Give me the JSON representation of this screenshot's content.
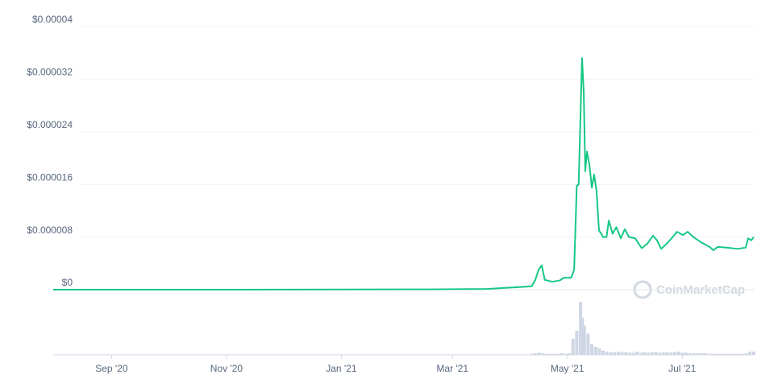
{
  "chart_data": {
    "type": "line",
    "watermark": "CoinMarketCap",
    "x": [
      0,
      100,
      200,
      230,
      254,
      256,
      257.7,
      259.4,
      261,
      265,
      269,
      271,
      275,
      276.6,
      278,
      279,
      280.8,
      281.7,
      282.5,
      283.4,
      284.7,
      286,
      287.2,
      288.5,
      289.8,
      291,
      292,
      293.8,
      295,
      297,
      299,
      301.4,
      303.5,
      305.7,
      309,
      312.5,
      315.5,
      318.5,
      320.6,
      322.8,
      325.8,
      328.3,
      331.3,
      334.3,
      336.9,
      339.9,
      344,
      348.5,
      350.6,
      352.8,
      357,
      363.5,
      367.7,
      369,
      370.7,
      372
    ],
    "xlim": [
      0,
      372
    ],
    "xticks": [
      {
        "value": 31,
        "label": "Sep '20"
      },
      {
        "value": 92,
        "label": "Nov '20"
      },
      {
        "value": 153,
        "label": "Jan '21"
      },
      {
        "value": 212,
        "label": "Mar '21"
      },
      {
        "value": 273,
        "label": "May '21"
      },
      {
        "value": 334,
        "label": "Jul '21"
      }
    ],
    "ylim": [
      0,
      4e-05
    ],
    "yticks": [
      {
        "value": 0,
        "label": "$0"
      },
      {
        "value": 8e-06,
        "label": "$0.000008"
      },
      {
        "value": 1.6e-05,
        "label": "$0.000016"
      },
      {
        "value": 2.4e-05,
        "label": "$0.000024"
      },
      {
        "value": 3.2e-05,
        "label": "$0.000032"
      },
      {
        "value": 4e-05,
        "label": "$0.00004"
      }
    ],
    "y2lim": [
      0,
      100
    ],
    "grid": true,
    "series": [
      {
        "color": "#16c784",
        "values": [
          0,
          0,
          5e-08,
          1e-07,
          5e-07,
          1.5e-06,
          3e-06,
          3.7e-06,
          1.5e-06,
          1.2e-06,
          1.4e-06,
          1.8e-06,
          1.8e-06,
          3e-06,
          1.58e-05,
          1.6e-05,
          3.52e-05,
          3e-05,
          1.8e-05,
          2.1e-05,
          1.9e-05,
          1.55e-05,
          1.75e-05,
          1.5e-05,
          9e-06,
          8.5e-06,
          8e-06,
          8e-06,
          1.05e-05,
          8.5e-06,
          9.5e-06,
          7.8e-06,
          9.2e-06,
          8e-06,
          7.8e-06,
          6.3e-06,
          7e-06,
          8.2e-06,
          7.5e-06,
          6.2e-06,
          7e-06,
          7.8e-06,
          8.8e-06,
          8.3e-06,
          8.8e-06,
          8e-06,
          7.2e-06,
          6.5e-06,
          6e-06,
          6.5e-06,
          6.4e-06,
          6.2e-06,
          6.4e-06,
          7.8e-06,
          7.5e-06,
          8e-06
        ]
      },
      {
        "type": "bar",
        "axis": "y2",
        "color": "#cfd6e4",
        "x": [
          254,
          256,
          258,
          260,
          262,
          264,
          266,
          268,
          270,
          272,
          274,
          276,
          278,
          280,
          281,
          282,
          284,
          286,
          288,
          290,
          292,
          294,
          296,
          298,
          300,
          302,
          304,
          306,
          308,
          310,
          312,
          314,
          316,
          318,
          320,
          322,
          324,
          326,
          328,
          330,
          332,
          334,
          336,
          338,
          340,
          342,
          344,
          346,
          348,
          350,
          352,
          354,
          356,
          358,
          360,
          362,
          364,
          366,
          368,
          370,
          372
        ],
        "values": [
          2,
          3,
          4,
          3,
          2,
          2,
          2,
          2,
          3,
          2,
          3,
          30,
          45,
          100,
          70,
          55,
          40,
          20,
          15,
          12,
          8,
          6,
          5,
          5,
          6,
          5,
          5,
          4,
          4,
          6,
          4,
          5,
          4,
          5,
          5,
          4,
          5,
          5,
          4,
          5,
          6,
          4,
          4,
          3,
          3,
          3,
          3,
          3,
          2,
          2,
          2,
          2,
          2,
          2,
          2,
          2,
          2,
          2,
          3,
          6,
          6
        ]
      }
    ]
  }
}
